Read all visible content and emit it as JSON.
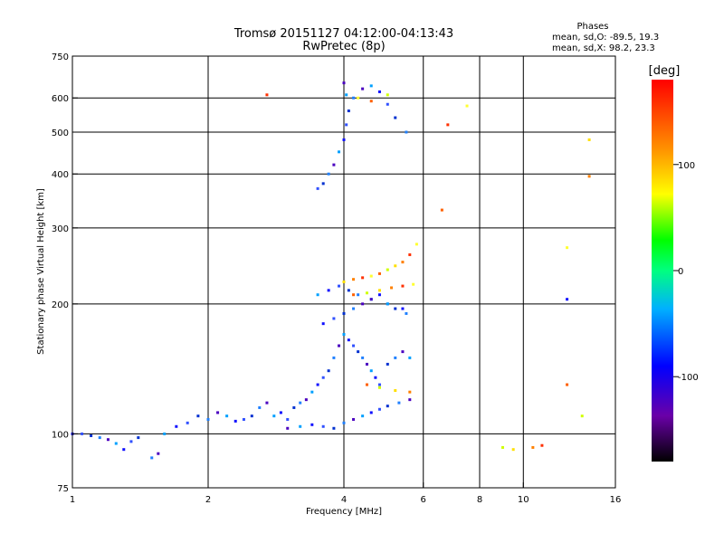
{
  "chart_data": {
    "type": "scatter",
    "title": "Tromsø 20151127 04:12:00-04:13:43",
    "subtitle": "RwPretec (8p)",
    "xlabel": "Frequency [MHz]",
    "ylabel": "Stationary phase Virtual Height [km]",
    "xscale": "log",
    "yscale": "log",
    "xlim": [
      1,
      16
    ],
    "ylim": [
      75,
      750
    ],
    "x_ticks": [
      1,
      2,
      4,
      6,
      8,
      10,
      16
    ],
    "y_ticks": [
      75,
      100,
      200,
      300,
      400,
      500,
      600,
      750
    ],
    "x_gridlines": [
      2,
      4,
      6,
      8,
      10
    ],
    "y_gridlines": [
      100,
      200,
      300,
      400,
      500,
      600
    ],
    "grid": true,
    "stats": {
      "header": "Phases",
      "line_o": "mean, sd,O: -89.5, 19.3",
      "line_x": "mean, sd,X:  98.2, 23.3"
    },
    "colorbar": {
      "label": "[deg]",
      "range": [
        -180,
        180
      ],
      "ticks": [
        100,
        0,
        -100
      ]
    },
    "series": [
      {
        "name": "O",
        "x": [
          1.0,
          1.05,
          1.1,
          1.15,
          1.2,
          1.25,
          1.3,
          1.35,
          1.4,
          1.5,
          1.55,
          1.6,
          1.7,
          1.8,
          1.9,
          2.0,
          2.1,
          2.2,
          2.3,
          2.4,
          2.5,
          2.6,
          2.7,
          2.8,
          2.9,
          3.0,
          3.1,
          3.2,
          3.3,
          3.4,
          3.5,
          3.6,
          3.7,
          3.8,
          3.9,
          4.0,
          4.1,
          4.2,
          4.3,
          4.4,
          4.5,
          4.6,
          4.7,
          4.8,
          5.0,
          5.2,
          5.4,
          5.6,
          3.6,
          3.8,
          4.0,
          4.2,
          4.4,
          4.6,
          4.8,
          5.0,
          5.2,
          5.5,
          3.0,
          3.2,
          3.4,
          3.6,
          3.8,
          4.0,
          4.2,
          4.4,
          4.6,
          4.8,
          5.0,
          5.3,
          5.6,
          3.5,
          3.7,
          3.9,
          4.1,
          4.3,
          4.6,
          5.0,
          5.4,
          3.5,
          3.6,
          3.7,
          3.8,
          3.9,
          4.0,
          4.05,
          4.1,
          4.2,
          4.4,
          4.6,
          4.8,
          5.0,
          5.2,
          5.5,
          4.0,
          4.05,
          12.5
        ],
        "y": [
          100,
          100,
          99,
          98,
          97,
          95,
          92,
          96,
          98,
          88,
          90,
          100,
          104,
          106,
          110,
          108,
          112,
          110,
          107,
          108,
          110,
          115,
          118,
          110,
          112,
          108,
          115,
          118,
          120,
          125,
          130,
          135,
          140,
          150,
          160,
          170,
          165,
          160,
          155,
          150,
          145,
          140,
          135,
          130,
          145,
          150,
          155,
          150,
          180,
          185,
          190,
          195,
          200,
          205,
          210,
          200,
          195,
          190,
          103,
          104,
          105,
          104,
          103,
          106,
          108,
          110,
          112,
          114,
          116,
          118,
          120,
          210,
          215,
          220,
          215,
          210,
          205,
          200,
          195,
          370,
          380,
          400,
          420,
          450,
          480,
          520,
          560,
          600,
          630,
          640,
          620,
          580,
          540,
          500,
          650,
          610,
          205
        ]
      },
      {
        "name": "X",
        "x": [
          4.0,
          4.2,
          4.4,
          4.6,
          4.8,
          5.0,
          5.2,
          5.4,
          5.6,
          5.8,
          4.2,
          4.5,
          4.8,
          5.1,
          5.4,
          5.7,
          4.5,
          4.8,
          5.2,
          5.6,
          6.8,
          7.5,
          6.6,
          9.0,
          9.5,
          10.5,
          11.0,
          12.5,
          12.5,
          13.5,
          14.0,
          14.0,
          2.7,
          4.3,
          4.6,
          5.0
        ],
        "y": [
          225,
          228,
          230,
          232,
          235,
          240,
          245,
          250,
          260,
          275,
          210,
          212,
          215,
          218,
          220,
          222,
          130,
          128,
          126,
          125,
          520,
          575,
          330,
          93,
          92,
          93,
          94,
          270,
          130,
          110,
          480,
          395,
          610,
          600,
          590,
          610
        ]
      }
    ]
  }
}
